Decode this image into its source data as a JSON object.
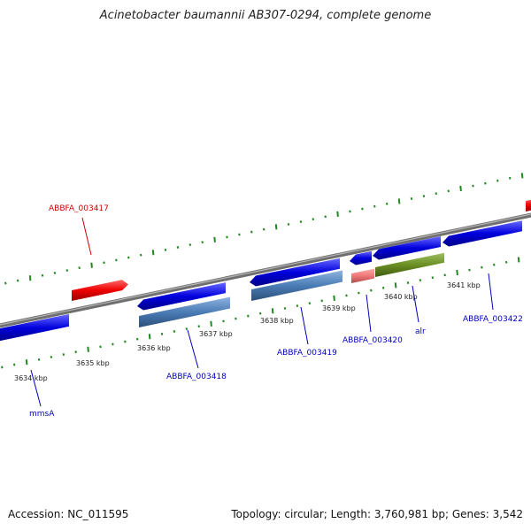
{
  "title": "Acinetobacter baumannii AB307-0294, complete genome",
  "footer": {
    "accession": "Accession: NC_011595",
    "summary": "Topology: circular; Length: 3,760,981 bp; Genes: 3,542"
  },
  "colors": {
    "backbone": "#808080",
    "tick": "#228822",
    "gene_blue": "#0000dd",
    "gene_red": "#ee0000",
    "gene_pink": "#ee7777",
    "gene_steel": "#4a7cb5",
    "gene_olive": "#6b8e23",
    "label_blue": "#0000bb",
    "label_red": "#cc0000"
  },
  "scale_labels": [
    "3634 kbp",
    "3635 kbp",
    "3636 kbp",
    "3637 kbp",
    "3638 kbp",
    "3639 kbp",
    "3640 kbp",
    "3641 kbp"
  ],
  "gene_labels": [
    {
      "id": "ABBFA_003417",
      "color": "red"
    },
    {
      "id": "ABBFA_003418",
      "color": "blue"
    },
    {
      "id": "mmsA",
      "color": "blue"
    },
    {
      "id": "ABBFA_003419",
      "color": "blue"
    },
    {
      "id": "ABBFA_003420",
      "color": "blue"
    },
    {
      "id": "alr",
      "color": "blue"
    },
    {
      "id": "ABBFA_003422",
      "color": "blue"
    }
  ]
}
